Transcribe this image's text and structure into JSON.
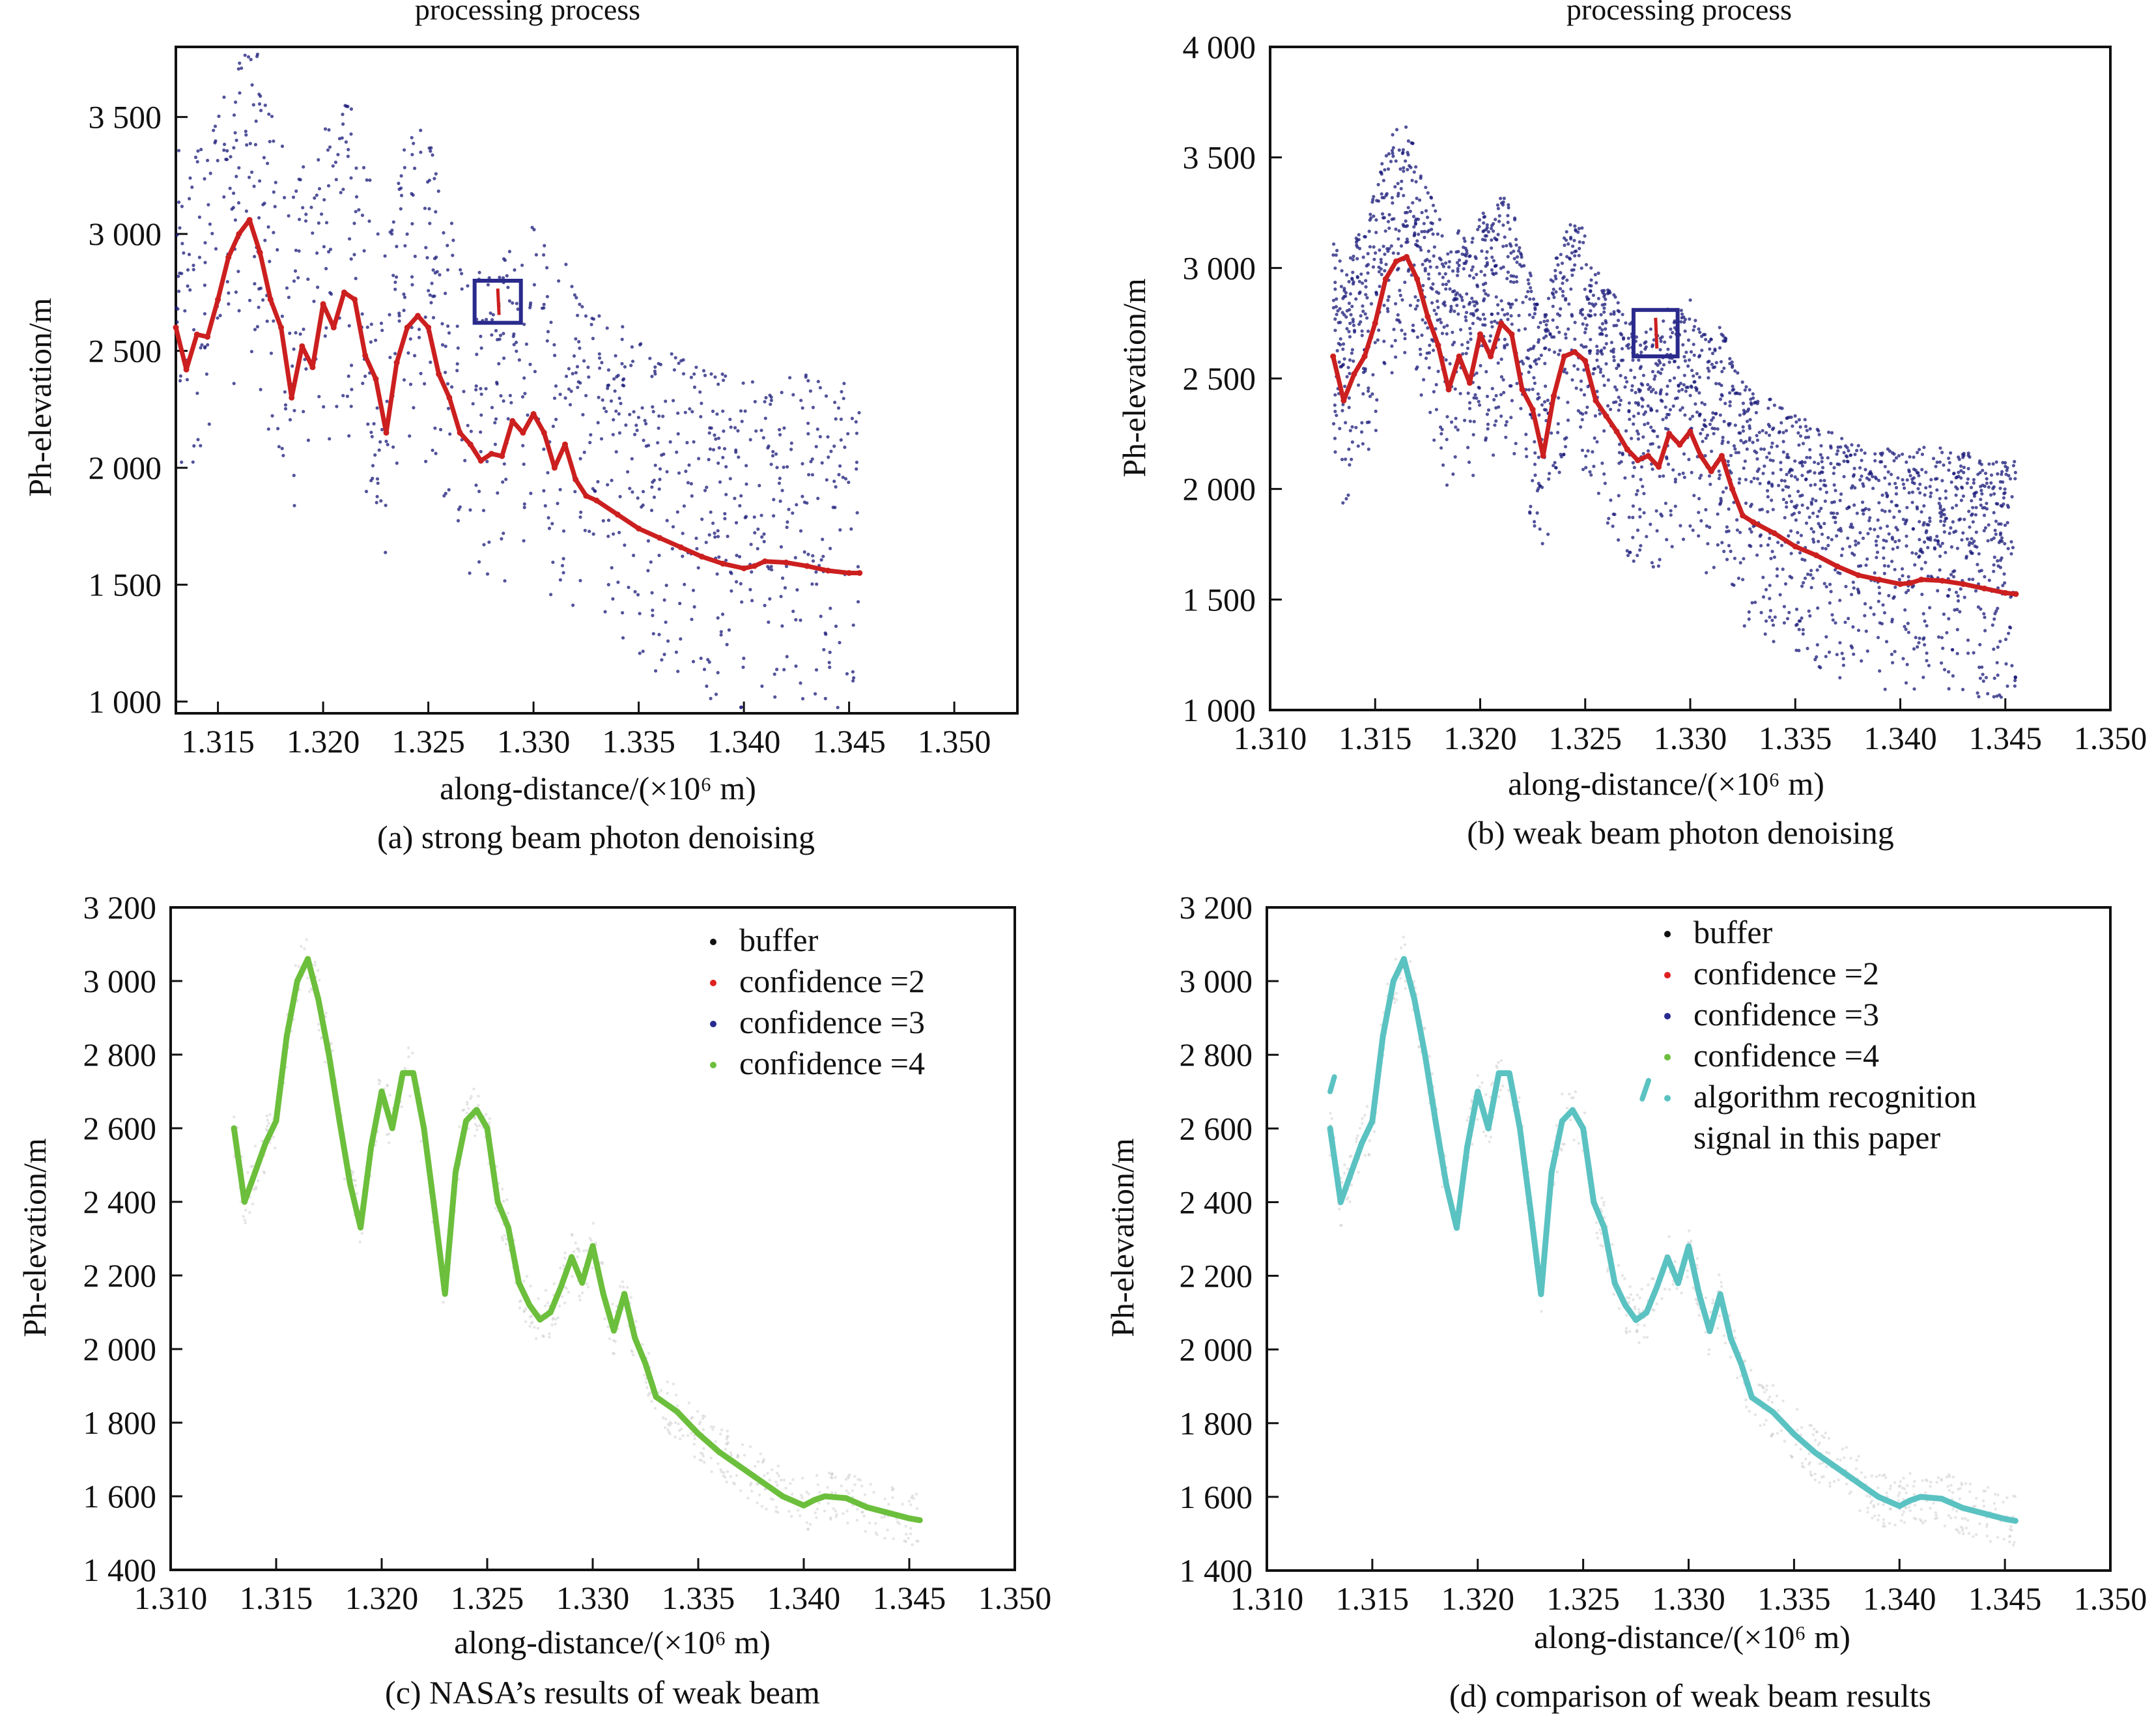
{
  "chart_data": [
    {
      "type": "scatter",
      "caption": "(a) strong beam photon denoising",
      "title_fragment": "processing process",
      "xlabel": "along-distance/(×10⁶ m)",
      "ylabel": "Ph-elevation/m",
      "xlim": [
        1.313,
        1.353
      ],
      "ylim": [
        950,
        3800
      ],
      "xticks": [
        1.315,
        1.32,
        1.325,
        1.33,
        1.335,
        1.34,
        1.345,
        1.35
      ],
      "xtick_labels": [
        "1.315",
        "1.320",
        "1.325",
        "1.330",
        "1.335",
        "1.340",
        "1.345",
        "1.350"
      ],
      "yticks": [
        1000,
        1500,
        2000,
        2500,
        3000,
        3500
      ],
      "ytick_labels": [
        "1 000",
        "1 500",
        "2 000",
        "2 500",
        "3 000",
        "3 500"
      ],
      "grid": false,
      "highlight_box": {
        "x": [
          1.3272,
          1.3294
        ],
        "y": [
          2620,
          2800
        ]
      },
      "noise": {
        "color": "#1a1a7a",
        "xrange": [
          1.313,
          1.3455
        ],
        "above": [
          0,
          820
        ],
        "below": [
          0,
          600
        ],
        "count": 1100
      },
      "series": [
        {
          "color": "#cc1f1f",
          "x": [
            1.313,
            1.3135,
            1.314,
            1.3145,
            1.315,
            1.3155,
            1.316,
            1.3165,
            1.317,
            1.3175,
            1.318,
            1.3185,
            1.319,
            1.3195,
            1.32,
            1.3205,
            1.321,
            1.3215,
            1.322,
            1.3225,
            1.323,
            1.3235,
            1.324,
            1.3245,
            1.325,
            1.3255,
            1.326,
            1.3265,
            1.327,
            1.3275,
            1.328,
            1.3285,
            1.329,
            1.3295,
            1.33,
            1.3305,
            1.331,
            1.3315,
            1.332,
            1.3325,
            1.333,
            1.334,
            1.335,
            1.336,
            1.337,
            1.338,
            1.339,
            1.34,
            1.3405,
            1.341,
            1.342,
            1.343,
            1.344,
            1.345,
            1.3455
          ],
          "y": [
            2600,
            2420,
            2570,
            2560,
            2720,
            2900,
            3000,
            3060,
            2920,
            2720,
            2600,
            2300,
            2520,
            2430,
            2700,
            2600,
            2750,
            2720,
            2480,
            2380,
            2150,
            2450,
            2600,
            2650,
            2600,
            2400,
            2300,
            2150,
            2100,
            2030,
            2060,
            2050,
            2200,
            2150,
            2230,
            2150,
            2000,
            2100,
            1950,
            1880,
            1860,
            1800,
            1740,
            1700,
            1660,
            1620,
            1590,
            1570,
            1580,
            1600,
            1595,
            1580,
            1560,
            1550,
            1550
          ]
        }
      ]
    },
    {
      "type": "scatter",
      "caption": "(b) weak beam photon denoising",
      "title_fragment": "processing process",
      "xlabel": "along-distance/(×10⁶ m)",
      "ylabel": "Ph-elevation/m",
      "xlim": [
        1.31,
        1.35
      ],
      "ylim": [
        1000,
        4000
      ],
      "xticks": [
        1.31,
        1.315,
        1.32,
        1.325,
        1.33,
        1.335,
        1.34,
        1.345,
        1.35
      ],
      "xtick_labels": [
        "1.310",
        "1.315",
        "1.320",
        "1.325",
        "1.330",
        "1.335",
        "1.340",
        "1.345",
        "1.350"
      ],
      "yticks": [
        1000,
        1500,
        2000,
        2500,
        3000,
        3500,
        4000
      ],
      "ytick_labels": [
        "1 000",
        "1 500",
        "2 000",
        "2 500",
        "3 000",
        "3 500",
        "4 000"
      ],
      "grid": false,
      "highlight_box": {
        "x": [
          1.3273,
          1.3294
        ],
        "y": [
          2600,
          2810
        ]
      },
      "noise": {
        "color": "#1a1a7a",
        "xrange": [
          1.313,
          1.3455
        ],
        "above": [
          0,
          600
        ],
        "below": [
          0,
          500
        ],
        "count": 2600
      },
      "series": [
        {
          "color": "#cc1f1f",
          "x": [
            1.313,
            1.3135,
            1.314,
            1.3145,
            1.315,
            1.3155,
            1.316,
            1.3165,
            1.317,
            1.3175,
            1.318,
            1.3185,
            1.319,
            1.3195,
            1.32,
            1.3205,
            1.321,
            1.3215,
            1.322,
            1.3225,
            1.323,
            1.3235,
            1.324,
            1.3245,
            1.325,
            1.3255,
            1.326,
            1.3265,
            1.327,
            1.3275,
            1.328,
            1.3285,
            1.329,
            1.3295,
            1.33,
            1.3305,
            1.331,
            1.3315,
            1.332,
            1.3325,
            1.333,
            1.334,
            1.335,
            1.336,
            1.337,
            1.338,
            1.339,
            1.34,
            1.3405,
            1.341,
            1.342,
            1.343,
            1.344,
            1.345,
            1.3455
          ],
          "y": [
            2600,
            2400,
            2520,
            2600,
            2750,
            2950,
            3030,
            3050,
            2950,
            2780,
            2650,
            2450,
            2600,
            2480,
            2700,
            2600,
            2750,
            2700,
            2450,
            2360,
            2150,
            2420,
            2600,
            2620,
            2580,
            2400,
            2330,
            2260,
            2180,
            2130,
            2150,
            2100,
            2250,
            2200,
            2260,
            2150,
            2080,
            2150,
            2000,
            1880,
            1850,
            1800,
            1740,
            1700,
            1650,
            1610,
            1590,
            1570,
            1575,
            1590,
            1585,
            1570,
            1550,
            1530,
            1525
          ]
        }
      ]
    },
    {
      "type": "scatter",
      "caption": "(c) NASA’s results of weak beam",
      "xlabel": "along-distance/(×10⁶ m)",
      "ylabel": "Ph-elevation/m",
      "xlim": [
        1.31,
        1.35
      ],
      "ylim": [
        1400,
        3200
      ],
      "xticks": [
        1.31,
        1.315,
        1.32,
        1.325,
        1.33,
        1.335,
        1.34,
        1.345,
        1.35
      ],
      "xtick_labels": [
        "1.310",
        "1.315",
        "1.320",
        "1.325",
        "1.330",
        "1.335",
        "1.340",
        "1.345",
        "1.350"
      ],
      "yticks": [
        1400,
        1600,
        1800,
        2000,
        2200,
        2400,
        2600,
        2800,
        3000,
        3200
      ],
      "ytick_labels": [
        "1 400",
        "1 600",
        "1 800",
        "2 000",
        "2 200",
        "2 400",
        "2 600",
        "2 800",
        "3 000",
        "3 200"
      ],
      "grid": false,
      "legend_position": "top-right",
      "legend": [
        {
          "label": "buffer",
          "color": "#111111"
        },
        {
          "label": "confidence =2",
          "color": "#e02020"
        },
        {
          "label": "confidence =3",
          "color": "#2a2a90"
        },
        {
          "label": "confidence =4",
          "color": "#6cbf3c"
        }
      ],
      "series": [
        {
          "color": "#6cbf3c",
          "x": [
            1.313,
            1.3135,
            1.314,
            1.3145,
            1.315,
            1.3155,
            1.316,
            1.3165,
            1.317,
            1.3175,
            1.318,
            1.3185,
            1.319,
            1.3195,
            1.32,
            1.3205,
            1.321,
            1.3215,
            1.322,
            1.3225,
            1.323,
            1.3235,
            1.324,
            1.3245,
            1.325,
            1.3255,
            1.326,
            1.3265,
            1.327,
            1.3275,
            1.328,
            1.3285,
            1.329,
            1.3295,
            1.33,
            1.3305,
            1.331,
            1.3315,
            1.332,
            1.3325,
            1.333,
            1.334,
            1.335,
            1.336,
            1.337,
            1.338,
            1.339,
            1.34,
            1.3405,
            1.341,
            1.342,
            1.343,
            1.344,
            1.345,
            1.3455
          ],
          "y": [
            2600,
            2400,
            2480,
            2560,
            2620,
            2850,
            3000,
            3060,
            2950,
            2800,
            2620,
            2450,
            2330,
            2550,
            2700,
            2600,
            2750,
            2750,
            2600,
            2380,
            2150,
            2480,
            2620,
            2650,
            2600,
            2400,
            2330,
            2180,
            2120,
            2080,
            2100,
            2170,
            2250,
            2180,
            2280,
            2150,
            2050,
            2150,
            2030,
            1960,
            1870,
            1830,
            1770,
            1720,
            1680,
            1640,
            1600,
            1575,
            1590,
            1600,
            1595,
            1570,
            1555,
            1540,
            1535
          ]
        }
      ]
    },
    {
      "type": "scatter",
      "caption": "(d) comparison of weak beam results",
      "xlabel": "along-distance/(×10⁶ m)",
      "ylabel": "Ph-elevation/m",
      "xlim": [
        1.31,
        1.35
      ],
      "ylim": [
        1400,
        3200
      ],
      "xticks": [
        1.31,
        1.315,
        1.32,
        1.325,
        1.33,
        1.335,
        1.34,
        1.345,
        1.35
      ],
      "xtick_labels": [
        "1.310",
        "1.315",
        "1.320",
        "1.325",
        "1.330",
        "1.335",
        "1.340",
        "1.345",
        "1.350"
      ],
      "yticks": [
        1400,
        1600,
        1800,
        2000,
        2200,
        2400,
        2600,
        2800,
        3000,
        3200
      ],
      "ytick_labels": [
        "1 400",
        "1 600",
        "1 800",
        "2 000",
        "2 200",
        "2 400",
        "2 600",
        "2 800",
        "3 000",
        "3 200"
      ],
      "grid": false,
      "legend_position": "top-right",
      "legend": [
        {
          "label": "buffer",
          "color": "#111111"
        },
        {
          "label": "confidence =2",
          "color": "#e02020"
        },
        {
          "label": "confidence =3",
          "color": "#2a2a90"
        },
        {
          "label": "confidence =4",
          "color": "#6cbf3c"
        },
        {
          "label": "algorithm recognition",
          "label2": "signal in this paper",
          "color": "#5bc2c2"
        }
      ],
      "extra_segments": [
        {
          "x": [
            1.313,
            1.3132
          ],
          "y": [
            2700,
            2740
          ]
        },
        {
          "x": [
            1.3278,
            1.3281
          ],
          "y": [
            2680,
            2730
          ]
        }
      ],
      "series": [
        {
          "color": "#5bc2c2",
          "x": [
            1.313,
            1.3135,
            1.314,
            1.3145,
            1.315,
            1.3155,
            1.316,
            1.3165,
            1.317,
            1.3175,
            1.318,
            1.3185,
            1.319,
            1.3195,
            1.32,
            1.3205,
            1.321,
            1.3215,
            1.322,
            1.3225,
            1.323,
            1.3235,
            1.324,
            1.3245,
            1.325,
            1.3255,
            1.326,
            1.3265,
            1.327,
            1.3275,
            1.328,
            1.3285,
            1.329,
            1.3295,
            1.33,
            1.3305,
            1.331,
            1.3315,
            1.332,
            1.3325,
            1.333,
            1.334,
            1.335,
            1.336,
            1.337,
            1.338,
            1.339,
            1.34,
            1.3405,
            1.341,
            1.342,
            1.343,
            1.344,
            1.345,
            1.3455
          ],
          "y": [
            2600,
            2400,
            2480,
            2560,
            2620,
            2850,
            3000,
            3060,
            2950,
            2800,
            2620,
            2450,
            2330,
            2550,
            2700,
            2600,
            2750,
            2750,
            2600,
            2380,
            2150,
            2480,
            2620,
            2650,
            2600,
            2400,
            2330,
            2180,
            2120,
            2080,
            2100,
            2170,
            2250,
            2180,
            2280,
            2150,
            2050,
            2150,
            2030,
            1960,
            1870,
            1830,
            1770,
            1720,
            1680,
            1640,
            1600,
            1575,
            1590,
            1600,
            1595,
            1570,
            1555,
            1540,
            1535
          ]
        }
      ]
    }
  ]
}
